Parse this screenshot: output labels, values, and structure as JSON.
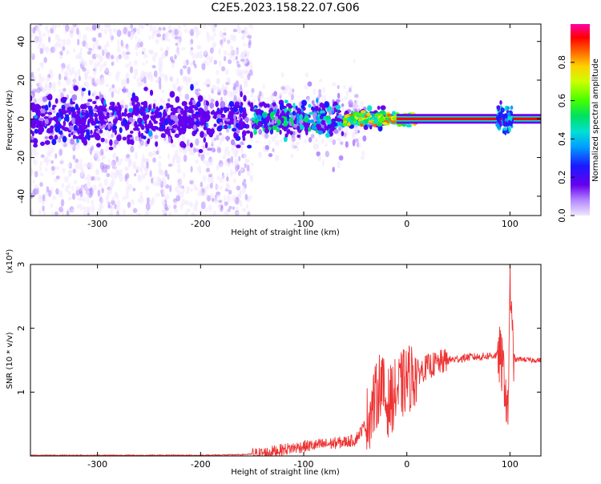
{
  "title": "C2E5.2023.158.22.07.G06",
  "chart_data": [
    {
      "type": "heatmap",
      "xlabel": "Height of straight line (km)",
      "ylabel": "Frequency (Hz)",
      "xlim": [
        -365,
        130
      ],
      "ylim": [
        -50,
        49
      ],
      "xticks": [
        -300,
        -200,
        -100,
        0,
        100
      ],
      "yticks": [
        -40,
        -20,
        0,
        20,
        40
      ],
      "colorbar": {
        "label": "Normalized spectral amplitude",
        "ticks": [
          "0.0",
          "0.2",
          "0.4",
          "0.6",
          "0.8"
        ],
        "range": [
          0,
          1
        ]
      }
    },
    {
      "type": "line",
      "xlabel": "Height of straight line (km)",
      "ylabel": "SNR (10 * v/v)",
      "y_multiplier": "(x10⁴)",
      "xlim": [
        -365,
        130
      ],
      "ylim": [
        0,
        3
      ],
      "xticks": [
        -300,
        -200,
        -100,
        0,
        100
      ],
      "yticks": [
        1,
        2,
        3
      ],
      "color": "#ee3333",
      "series": [
        {
          "x": [
            -365,
            -300,
            -250,
            -200,
            -160,
            -140,
            -120,
            -100,
            -80,
            -60,
            -50,
            -40,
            -30,
            -25,
            -20,
            -15,
            -10,
            -5,
            0,
            10,
            20,
            30,
            40,
            50,
            60,
            70,
            80,
            90,
            95,
            98,
            100,
            102,
            105,
            110,
            120,
            130
          ],
          "values": [
            0.01,
            0.01,
            0.01,
            0.01,
            0.02,
            0.04,
            0.1,
            0.15,
            0.18,
            0.22,
            0.25,
            0.5,
            0.9,
            1.2,
            0.8,
            0.9,
            1.0,
            1.1,
            1.2,
            1.3,
            1.4,
            1.45,
            1.5,
            1.52,
            1.55,
            1.55,
            1.57,
            1.58,
            1.2,
            0.5,
            2.9,
            1.8,
            1.5,
            1.52,
            1.5,
            1.5
          ]
        }
      ]
    }
  ]
}
